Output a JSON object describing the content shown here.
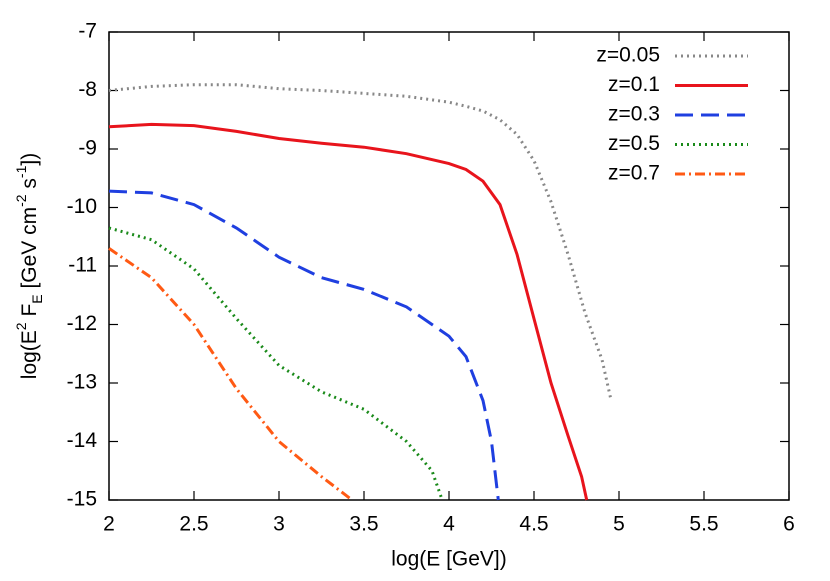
{
  "chart_data": {
    "type": "line",
    "xlabel": "log(E [GeV])",
    "ylabel": [
      {
        "text": "log(E"
      },
      {
        "text": "2",
        "script": "sup"
      },
      {
        "text": " F"
      },
      {
        "text": "E",
        "script": "sub"
      },
      {
        "text": " [GeV cm"
      },
      {
        "text": "-2",
        "script": "sup"
      },
      {
        "text": " s"
      },
      {
        "text": "-1",
        "script": "sup"
      },
      {
        "text": "])"
      }
    ],
    "xlim": [
      2,
      6
    ],
    "ylim": [
      -15,
      -7
    ],
    "xticks": [
      2,
      2.5,
      3,
      3.5,
      4,
      4.5,
      5,
      5.5,
      6
    ],
    "yticks": [
      -7,
      -8,
      -9,
      -10,
      -11,
      -12,
      -13,
      -14,
      -15
    ],
    "legend": "upper right",
    "series": [
      {
        "name": "z=0.05",
        "color": "#888888",
        "style": "dotted",
        "x": [
          2,
          2.25,
          2.5,
          2.75,
          3,
          3.25,
          3.5,
          3.75,
          4,
          4.1,
          4.2,
          4.3,
          4.4,
          4.5,
          4.6,
          4.7,
          4.8,
          4.9,
          4.95
        ],
        "y": [
          -8.0,
          -7.93,
          -7.9,
          -7.9,
          -7.97,
          -8.0,
          -8.05,
          -8.1,
          -8.2,
          -8.27,
          -8.35,
          -8.5,
          -8.75,
          -9.2,
          -9.9,
          -10.8,
          -11.8,
          -12.6,
          -13.25
        ]
      },
      {
        "name": "z=0.1",
        "color": "#e8141c",
        "style": "solid",
        "x": [
          2,
          2.25,
          2.5,
          2.75,
          3,
          3.25,
          3.5,
          3.75,
          4,
          4.1,
          4.2,
          4.3,
          4.4,
          4.5,
          4.6,
          4.7,
          4.78,
          4.81
        ],
        "y": [
          -8.62,
          -8.58,
          -8.6,
          -8.7,
          -8.82,
          -8.9,
          -8.97,
          -9.08,
          -9.25,
          -9.35,
          -9.55,
          -9.95,
          -10.8,
          -11.9,
          -13.0,
          -13.9,
          -14.6,
          -15
        ]
      },
      {
        "name": "z=0.3",
        "color": "#1f3fe0",
        "style": "dashed",
        "x": [
          2,
          2.25,
          2.5,
          2.75,
          3,
          3.25,
          3.5,
          3.75,
          4,
          4.1,
          4.2,
          4.25,
          4.29
        ],
        "y": [
          -9.72,
          -9.75,
          -9.95,
          -10.35,
          -10.85,
          -11.2,
          -11.4,
          -11.7,
          -12.2,
          -12.55,
          -13.3,
          -14.0,
          -15
        ]
      },
      {
        "name": "z=0.5",
        "color": "#1a8a1a",
        "style": "dotted",
        "x": [
          2,
          2.25,
          2.5,
          2.75,
          3,
          3.25,
          3.5,
          3.75,
          3.9,
          3.96
        ],
        "y": [
          -10.35,
          -10.55,
          -11.05,
          -11.9,
          -12.7,
          -13.15,
          -13.45,
          -14.0,
          -14.5,
          -15
        ]
      },
      {
        "name": "z=0.7",
        "color": "#ff5a14",
        "style": "dashdot",
        "x": [
          2,
          2.25,
          2.5,
          2.75,
          3,
          3.25,
          3.43
        ],
        "y": [
          -10.7,
          -11.2,
          -12.0,
          -13.1,
          -14.0,
          -14.6,
          -15
        ]
      }
    ]
  }
}
